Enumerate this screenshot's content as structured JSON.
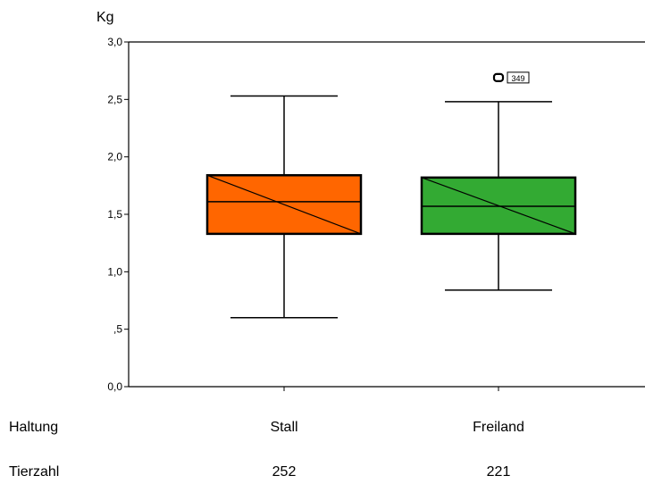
{
  "chart_data": {
    "type": "boxplot",
    "ylabel": "Kg",
    "ylim": [
      0,
      3.0
    ],
    "y_ticks": [
      {
        "value": 0.0,
        "label": "0,0"
      },
      {
        "value": 0.5,
        "label": ",5"
      },
      {
        "value": 1.0,
        "label": "1,0"
      },
      {
        "value": 1.5,
        "label": "1,5"
      },
      {
        "value": 2.0,
        "label": "2,0"
      },
      {
        "value": 2.5,
        "label": "2,5"
      },
      {
        "value": 3.0,
        "label": "3,0"
      }
    ],
    "grid": false,
    "categories": [
      "Stall",
      "Freiland"
    ],
    "boxes": [
      {
        "category": "Stall",
        "color": "#ff6600",
        "whisker_low": 0.6,
        "q1": 1.33,
        "median": 1.61,
        "q3": 1.84,
        "whisker_high": 2.53,
        "outliers": []
      },
      {
        "category": "Freiland",
        "color": "#33aa33",
        "whisker_low": 0.84,
        "q1": 1.33,
        "median": 1.57,
        "q3": 1.82,
        "whisker_high": 2.48,
        "outliers": [
          {
            "value": 2.69,
            "label": "349"
          }
        ]
      }
    ]
  },
  "table": {
    "row1_label": "Haltung",
    "row1_values": [
      "Stall",
      "Freiland"
    ],
    "row2_label": "Tierzahl",
    "row2_values": [
      "252",
      "221"
    ]
  }
}
